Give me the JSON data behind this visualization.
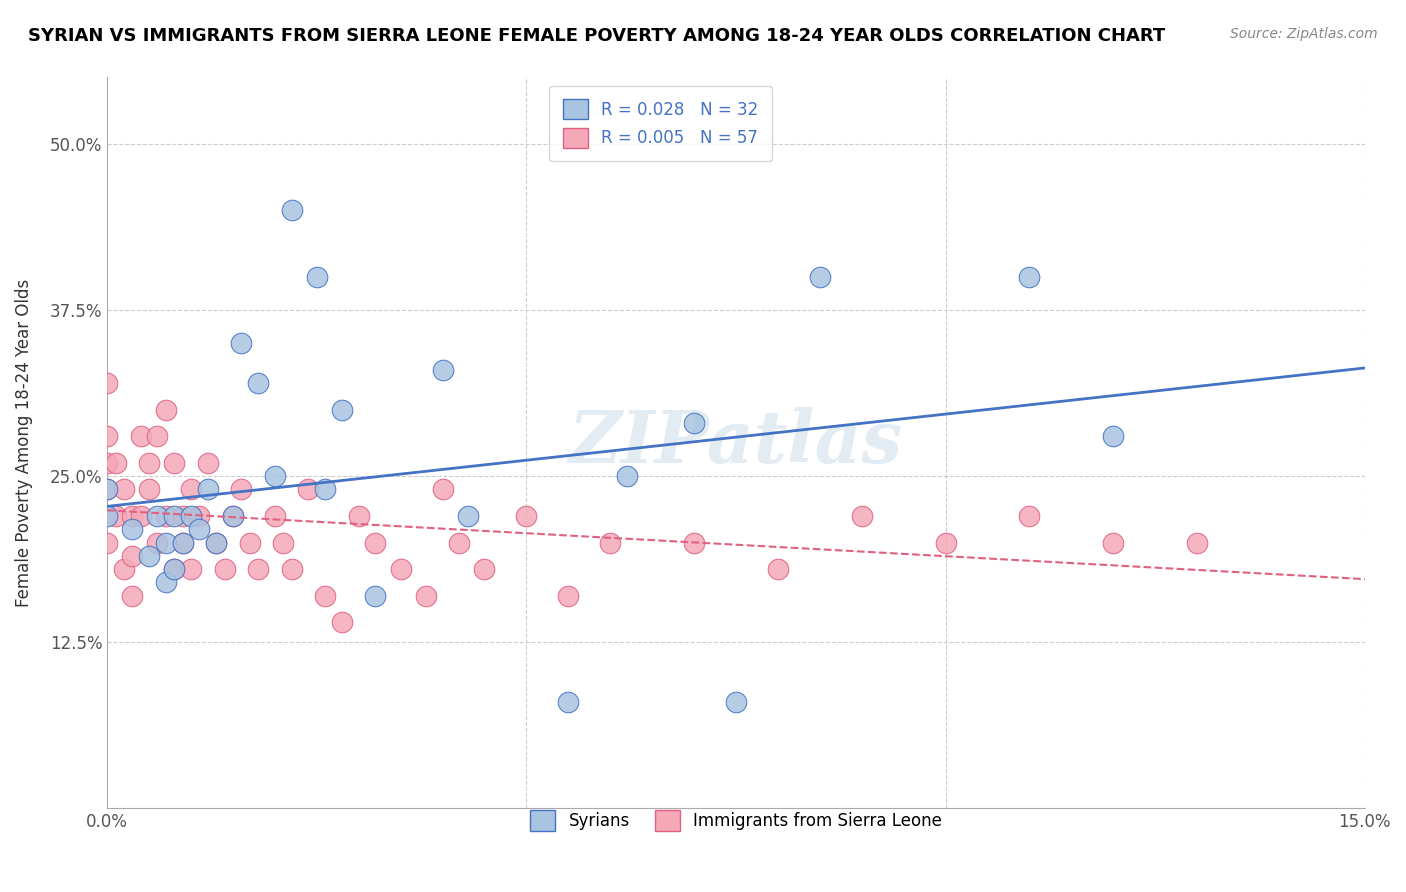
{
  "title": "SYRIAN VS IMMIGRANTS FROM SIERRA LEONE FEMALE POVERTY AMONG 18-24 YEAR OLDS CORRELATION CHART",
  "source": "Source: ZipAtlas.com",
  "ylabel": "Female Poverty Among 18-24 Year Olds",
  "xlim": [
    0.0,
    0.15
  ],
  "ylim": [
    0.0,
    0.55
  ],
  "legend_label1": "Syrians",
  "legend_label2": "Immigrants from Sierra Leone",
  "R1": 0.028,
  "N1": 32,
  "R2": 0.005,
  "N2": 57,
  "color1": "#a8c4e0",
  "color2": "#f4a8b8",
  "line_color1": "#4472c4",
  "line_color2": "#e06080",
  "watermark": "ZIPatlas",
  "syrians_x": [
    0.0,
    0.0,
    0.003,
    0.005,
    0.006,
    0.007,
    0.007,
    0.008,
    0.008,
    0.009,
    0.01,
    0.011,
    0.012,
    0.013,
    0.015,
    0.016,
    0.018,
    0.02,
    0.022,
    0.025,
    0.026,
    0.028,
    0.032,
    0.04,
    0.043,
    0.055,
    0.062,
    0.07,
    0.075,
    0.085,
    0.11,
    0.12
  ],
  "syrians_y": [
    0.24,
    0.22,
    0.21,
    0.19,
    0.22,
    0.17,
    0.2,
    0.22,
    0.18,
    0.2,
    0.22,
    0.21,
    0.24,
    0.2,
    0.22,
    0.35,
    0.32,
    0.25,
    0.45,
    0.4,
    0.24,
    0.3,
    0.16,
    0.33,
    0.22,
    0.08,
    0.25,
    0.29,
    0.08,
    0.4,
    0.4,
    0.28
  ],
  "sierraleone_x": [
    0.0,
    0.0,
    0.0,
    0.0,
    0.0,
    0.001,
    0.001,
    0.002,
    0.002,
    0.003,
    0.003,
    0.003,
    0.004,
    0.004,
    0.005,
    0.005,
    0.006,
    0.006,
    0.007,
    0.007,
    0.008,
    0.008,
    0.009,
    0.009,
    0.01,
    0.01,
    0.011,
    0.012,
    0.013,
    0.014,
    0.015,
    0.016,
    0.017,
    0.018,
    0.02,
    0.021,
    0.022,
    0.024,
    0.026,
    0.028,
    0.03,
    0.032,
    0.035,
    0.038,
    0.04,
    0.042,
    0.045,
    0.05,
    0.055,
    0.06,
    0.07,
    0.08,
    0.09,
    0.1,
    0.11,
    0.12,
    0.13
  ],
  "sierraleone_y": [
    0.32,
    0.28,
    0.26,
    0.24,
    0.2,
    0.26,
    0.22,
    0.24,
    0.18,
    0.22,
    0.19,
    0.16,
    0.28,
    0.22,
    0.26,
    0.24,
    0.28,
    0.2,
    0.3,
    0.22,
    0.26,
    0.18,
    0.22,
    0.2,
    0.24,
    0.18,
    0.22,
    0.26,
    0.2,
    0.18,
    0.22,
    0.24,
    0.2,
    0.18,
    0.22,
    0.2,
    0.18,
    0.24,
    0.16,
    0.14,
    0.22,
    0.2,
    0.18,
    0.16,
    0.24,
    0.2,
    0.18,
    0.22,
    0.16,
    0.2,
    0.2,
    0.18,
    0.22,
    0.2,
    0.22,
    0.2,
    0.2
  ]
}
